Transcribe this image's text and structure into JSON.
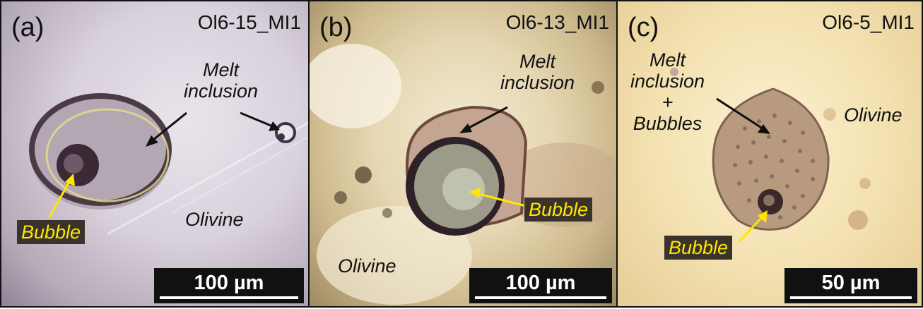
{
  "panels": [
    {
      "letter": "(a)",
      "sample": "Ol6-15_MI1",
      "melt_label": "Melt\ninclusion",
      "bubble_label": "Bubble",
      "host_label": "Olivine",
      "scale": "100 µm"
    },
    {
      "letter": "(b)",
      "sample": "Ol6-13_MI1",
      "melt_label": "Melt\ninclusion",
      "bubble_label": "Bubble",
      "host_label": "Olivine",
      "scale": "100 µm"
    },
    {
      "letter": "(c)",
      "sample": "Ol6-5_MI1",
      "melt_label": "Melt\ninclusion\n+\nBubbles",
      "bubble_label": "Bubble",
      "host_label": "Olivine",
      "scale": "50 µm"
    }
  ],
  "colors": {
    "arrow_black": "#111111",
    "arrow_yellow": "#ffe600",
    "label_background": "#3a332c"
  }
}
